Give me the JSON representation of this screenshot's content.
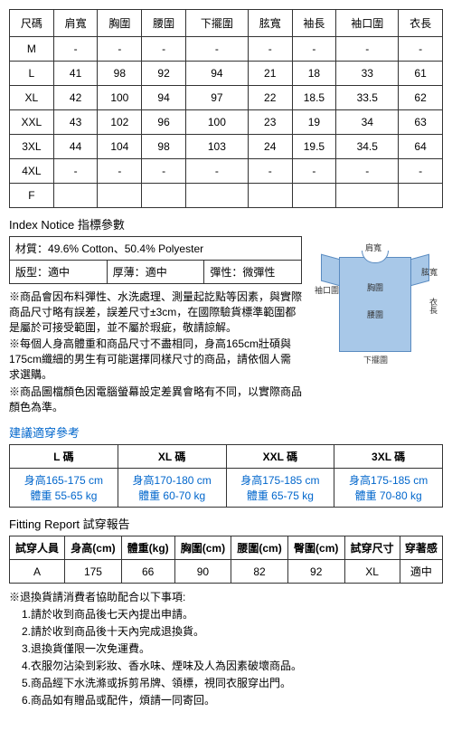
{
  "sizeTable": {
    "headers": [
      "尺碼",
      "肩寬",
      "胸圍",
      "腰圍",
      "下擺圍",
      "胘寬",
      "袖長",
      "袖口圍",
      "衣長"
    ],
    "rows": [
      [
        "M",
        "-",
        "-",
        "-",
        "-",
        "-",
        "-",
        "-",
        "-"
      ],
      [
        "L",
        "41",
        "98",
        "92",
        "94",
        "21",
        "18",
        "33",
        "61"
      ],
      [
        "XL",
        "42",
        "100",
        "94",
        "97",
        "22",
        "18.5",
        "33.5",
        "62"
      ],
      [
        "XXL",
        "43",
        "102",
        "96",
        "100",
        "23",
        "19",
        "34",
        "63"
      ],
      [
        "3XL",
        "44",
        "104",
        "98",
        "103",
        "24",
        "19.5",
        "34.5",
        "64"
      ],
      [
        "4XL",
        "-",
        "-",
        "-",
        "-",
        "-",
        "-",
        "-",
        "-"
      ],
      [
        "F",
        "",
        "",
        "",
        "",
        "",
        "",
        "",
        ""
      ]
    ]
  },
  "indexTitle": "Index Notice 指標參數",
  "material": {
    "row1": {
      "label": "材質：",
      "value": "49.6% Cotton、50.4% Polyester"
    },
    "row2": [
      {
        "label": "版型：",
        "value": "適中"
      },
      {
        "label": "厚薄：",
        "value": "適中"
      },
      {
        "label": "彈性：",
        "value": "微彈性"
      }
    ]
  },
  "diagram": {
    "labels": {
      "shoulder": "肩寬",
      "chest": "胸圍",
      "waist": "腰圍",
      "hem": "下擺圍",
      "sleeve": "袖口圍",
      "length": "衣長",
      "bicep": "胘寬"
    }
  },
  "notes": [
    "※商品會因布料彈性、水洗處理、測量起訖點等因素，與實際商品尺寸略有誤差，誤差尺寸±3cm，在國際驗貨標準範圍都是屬於可接受範圍，並不屬於瑕疵，敬請諒解。",
    "※每個人身高體重和商品尺寸不盡相同，身高165cm壯碩與175cm纖細的男生有可能選擇同樣尺寸的商品，請依個人需求選購。",
    "※商品圖檔顏色因電腦螢幕設定差異會略有不同，以實際商品顏色為準。"
  ],
  "recTitle": "建議適穿參考",
  "recTable": {
    "headers": [
      "L 碼",
      "XL 碼",
      "XXL 碼",
      "3XL 碼"
    ],
    "rows": [
      [
        "身高165-175 cm\n體重 55-65 kg",
        "身高170-180 cm\n體重 60-70 kg",
        "身高175-185 cm\n體重 65-75 kg",
        "身高175-185 cm\n體重 70-80 kg"
      ]
    ]
  },
  "fitTitle": "Fitting Report 試穿報告",
  "fitTable": {
    "headers": [
      "試穿人員",
      "身高(cm)",
      "體重(kg)",
      "胸圍(cm)",
      "腰圍(cm)",
      "臀圍(cm)",
      "試穿尺寸",
      "穿著感"
    ],
    "rows": [
      [
        "A",
        "175",
        "66",
        "90",
        "82",
        "92",
        "XL",
        "適中"
      ]
    ]
  },
  "returnTitle": "※退換貨請消費者協助配合以下事項:",
  "returnItems": [
    "1.請於收到商品後七天內提出申請。",
    "2.請於收到商品後十天內完成退換貨。",
    "3.退換貨僅限一次免運費。",
    "4.衣服勿沾染到彩妝、香水味、煙味及人為因素破壞商品。",
    "5.商品經下水洗滌或拆剪吊牌、領標，視同衣服穿出門。",
    "6.商品如有贈品或配件，煩請一同寄回。"
  ]
}
